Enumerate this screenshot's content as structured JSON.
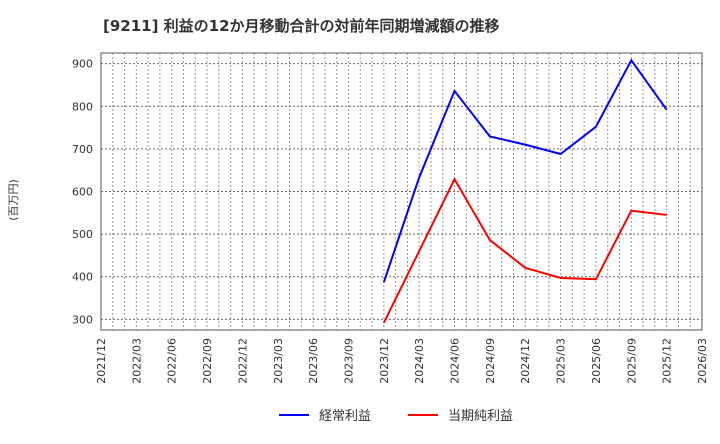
{
  "chart_data": {
    "type": "line",
    "title": "[9211]  利益の12か月移動合計の対前年同期増減額の推移",
    "ylabel": "(百万円)",
    "xlabel": "",
    "ylim": [
      275,
      925
    ],
    "yticks": [
      300,
      400,
      500,
      600,
      700,
      800,
      900
    ],
    "x": [
      "2021/12",
      "2022/03",
      "2022/06",
      "2022/09",
      "2022/12",
      "2023/03",
      "2023/06",
      "2023/09",
      "2023/12",
      "2024/03",
      "2024/06",
      "2024/09",
      "2024/12",
      "2025/03",
      "2025/06",
      "2025/09",
      "2025/12",
      "2026/03"
    ],
    "grid": true,
    "legend_position": "bottom",
    "series": [
      {
        "name": "経常利益",
        "color": "#0000ff",
        "values": [
          null,
          null,
          null,
          null,
          null,
          null,
          null,
          null,
          387,
          633,
          836,
          729,
          710,
          688,
          752,
          908,
          792,
          null
        ]
      },
      {
        "name": "当期純利益",
        "color": "#ff0000",
        "values": [
          null,
          null,
          null,
          null,
          null,
          null,
          null,
          null,
          292,
          460,
          629,
          486,
          421,
          397,
          394,
          555,
          545,
          null
        ]
      }
    ]
  }
}
